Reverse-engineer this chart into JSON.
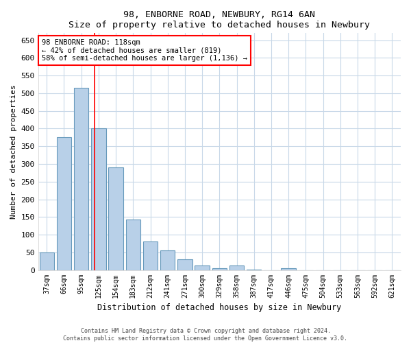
{
  "title": "98, ENBORNE ROAD, NEWBURY, RG14 6AN",
  "subtitle": "Size of property relative to detached houses in Newbury",
  "xlabel": "Distribution of detached houses by size in Newbury",
  "ylabel": "Number of detached properties",
  "categories": [
    "37sqm",
    "66sqm",
    "95sqm",
    "125sqm",
    "154sqm",
    "183sqm",
    "212sqm",
    "241sqm",
    "271sqm",
    "300sqm",
    "329sqm",
    "358sqm",
    "387sqm",
    "417sqm",
    "446sqm",
    "475sqm",
    "504sqm",
    "533sqm",
    "563sqm",
    "592sqm",
    "621sqm"
  ],
  "values": [
    50,
    375,
    515,
    400,
    290,
    143,
    80,
    55,
    30,
    12,
    5,
    12,
    2,
    0,
    5,
    0,
    0,
    0,
    0,
    0,
    0
  ],
  "bar_color": "#b8d0e8",
  "bar_edge_color": "#6699bb",
  "red_line_x": 2.77,
  "annotation_title": "98 ENBORNE ROAD: 118sqm",
  "annotation_line1": "← 42% of detached houses are smaller (819)",
  "annotation_line2": "58% of semi-detached houses are larger (1,136) →",
  "annotation_box_color": "white",
  "annotation_box_edge_color": "red",
  "ylim": [
    0,
    670
  ],
  "yticks": [
    0,
    50,
    100,
    150,
    200,
    250,
    300,
    350,
    400,
    450,
    500,
    550,
    600,
    650
  ],
  "bg_color": "white",
  "grid_color": "#c8d8e8",
  "footer_line1": "Contains HM Land Registry data © Crown copyright and database right 2024.",
  "footer_line2": "Contains public sector information licensed under the Open Government Licence v3.0."
}
